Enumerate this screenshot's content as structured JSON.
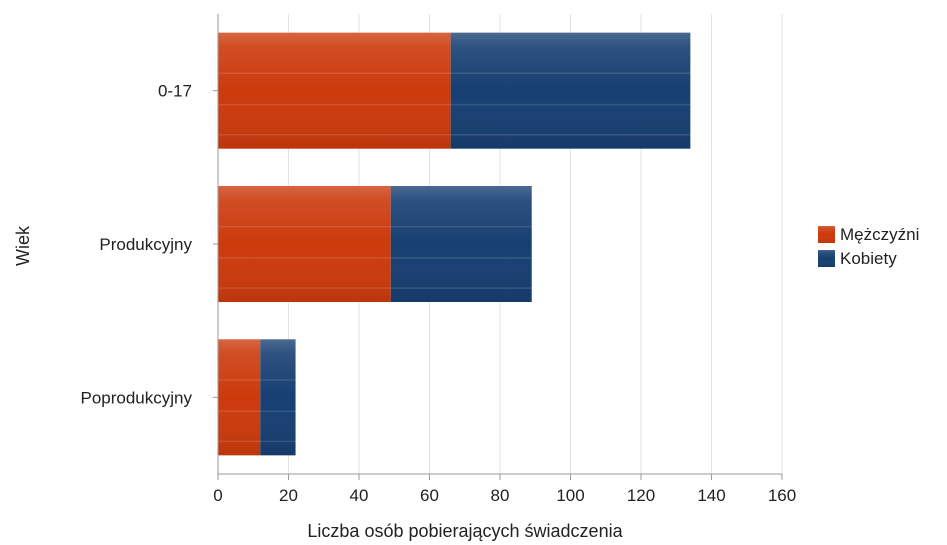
{
  "chart_data": {
    "type": "bar",
    "orientation": "horizontal",
    "stacked": true,
    "categories": [
      "0-17",
      "Produkcyjny",
      "Poprodukcyjny"
    ],
    "series": [
      {
        "name": "Mężczyźni",
        "values": [
          66,
          49,
          12
        ],
        "color": "#cc3a0c"
      },
      {
        "name": "Kobiety",
        "values": [
          68,
          40,
          10
        ],
        "color": "#173f72"
      }
    ],
    "xlabel": "Liczba osób pobierających świadczenia",
    "ylabel": "Wiek",
    "xlim": [
      0,
      160
    ],
    "xticks": [
      0,
      20,
      40,
      60,
      80,
      100,
      120,
      140,
      160
    ],
    "grid": true,
    "legend_position": "right"
  }
}
